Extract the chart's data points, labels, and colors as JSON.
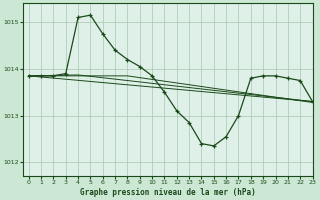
{
  "title": "Graphe pression niveau de la mer (hPa)",
  "bg_color": "#cce8d4",
  "plot_bg_color": "#dff0e8",
  "line_color": "#1a4a1a",
  "grid_color": "#a8c8b0",
  "xlim": [
    -0.5,
    23
  ],
  "ylim": [
    1011.7,
    1015.4
  ],
  "yticks": [
    1012,
    1013,
    1014,
    1015
  ],
  "xticks": [
    0,
    1,
    2,
    3,
    4,
    5,
    6,
    7,
    8,
    9,
    10,
    11,
    12,
    13,
    14,
    15,
    16,
    17,
    18,
    19,
    20,
    21,
    22,
    23
  ],
  "series_main": {
    "x": [
      0,
      1,
      2,
      3,
      4,
      5,
      6,
      7,
      8,
      9,
      10,
      11,
      12,
      13,
      14,
      15,
      16,
      17,
      18,
      19,
      20,
      21,
      22,
      23
    ],
    "y": [
      1013.85,
      1013.85,
      1013.85,
      1013.9,
      1015.1,
      1015.15,
      1014.75,
      1014.4,
      1014.2,
      1014.05,
      1013.85,
      1013.5,
      1013.1,
      1012.85,
      1012.4,
      1012.35,
      1012.55,
      1013.0,
      1013.8,
      1013.85,
      1013.85,
      1013.8,
      1013.75,
      1013.3
    ]
  },
  "series_line1": {
    "x": [
      0,
      23
    ],
    "y": [
      1013.85,
      1013.3
    ]
  },
  "series_line2": {
    "x": [
      0,
      4,
      23
    ],
    "y": [
      1013.85,
      1013.87,
      1013.3
    ]
  },
  "series_line3": {
    "x": [
      0,
      8,
      23
    ],
    "y": [
      1013.85,
      1013.85,
      1013.28
    ]
  }
}
